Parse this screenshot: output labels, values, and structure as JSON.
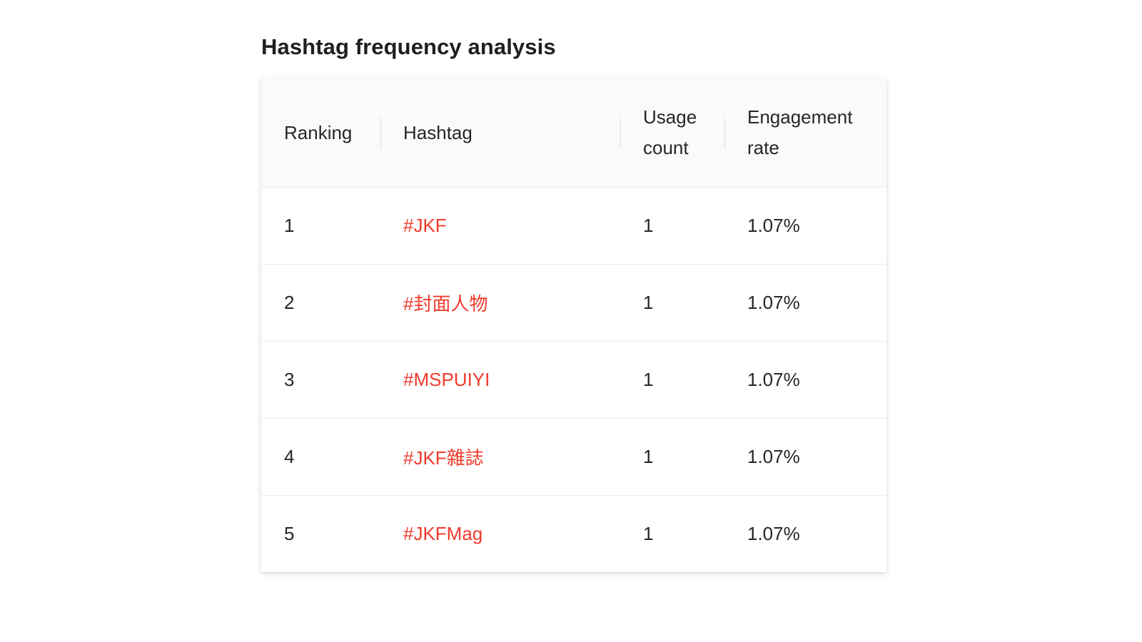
{
  "page": {
    "title": "Hashtag frequency analysis"
  },
  "table": {
    "headers": {
      "ranking": "Ranking",
      "hashtag": "Hashtag",
      "usage_count": "Usage count",
      "engagement_rate": "Engagement rate"
    },
    "rows": [
      {
        "ranking": "1",
        "hashtag": "#JKF",
        "usage_count": "1",
        "engagement_rate": "1.07%"
      },
      {
        "ranking": "2",
        "hashtag": "#封面人物",
        "usage_count": "1",
        "engagement_rate": "1.07%"
      },
      {
        "ranking": "3",
        "hashtag": "#MSPUIYI",
        "usage_count": "1",
        "engagement_rate": "1.07%"
      },
      {
        "ranking": "4",
        "hashtag": "#JKF雜誌",
        "usage_count": "1",
        "engagement_rate": "1.07%"
      },
      {
        "ranking": "5",
        "hashtag": "#JKFMag",
        "usage_count": "1",
        "engagement_rate": "1.07%"
      }
    ]
  },
  "colors": {
    "hashtag_link": "#ef3b2c",
    "header_bg": "#fafafa",
    "text": "#262626"
  }
}
